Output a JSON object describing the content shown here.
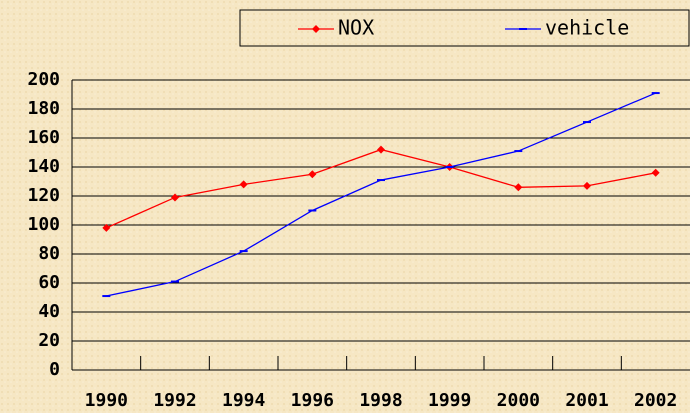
{
  "chart_data": {
    "type": "line",
    "categories": [
      "1990",
      "1992",
      "1994",
      "1996",
      "1998",
      "1999",
      "2000",
      "2001",
      "2002"
    ],
    "series": [
      {
        "name": "NOX",
        "color": "#ff0000",
        "marker": "diamond",
        "values": [
          98,
          119,
          128,
          135,
          152,
          140,
          126,
          127,
          136
        ]
      },
      {
        "name": "vehicle",
        "color": "#0000ff",
        "marker": "dash",
        "values": [
          51,
          61,
          82,
          110,
          131,
          140,
          151,
          171,
          191
        ]
      }
    ],
    "ylim": [
      0,
      200
    ],
    "yticks": [
      0,
      20,
      40,
      60,
      80,
      100,
      120,
      140,
      160,
      180,
      200
    ],
    "grid": true,
    "legend": "top-right"
  }
}
